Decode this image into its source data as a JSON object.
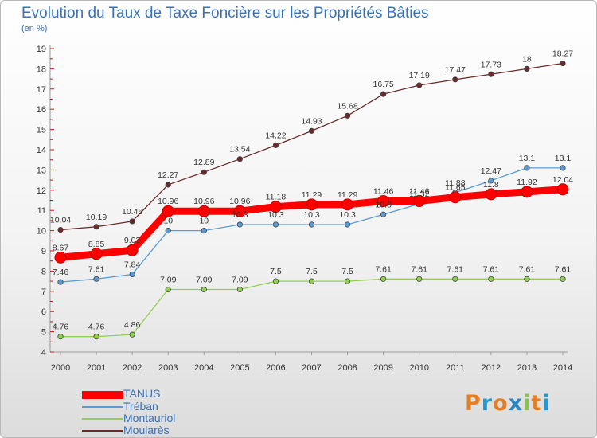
{
  "title": "Evolution du Taux de Taxe Foncière sur les Propriétés Bâties",
  "unit": "(en %)",
  "logo": "Proxiti",
  "chart_data": {
    "type": "line",
    "title": "Evolution du Taux de Taxe Foncière sur les Propriétés Bâties",
    "ylabel": "(en %)",
    "xlabel": "",
    "ylim": [
      4,
      19
    ],
    "y_ticks": [
      4,
      5,
      6,
      7,
      8,
      9,
      10,
      11,
      12,
      13,
      14,
      15,
      16,
      17,
      18,
      19
    ],
    "grid": false,
    "legend_position": "bottom-left",
    "x": [
      "2000",
      "2001",
      "2002",
      "2003",
      "2004",
      "2005",
      "2006",
      "2007",
      "2008",
      "2009",
      "2010",
      "2011",
      "2012",
      "2013",
      "2014"
    ],
    "series": [
      {
        "name": "TANUS",
        "color": "#ff0000",
        "values": [
          8.67,
          8.85,
          9.03,
          10.96,
          10.96,
          10.96,
          11.18,
          11.29,
          11.29,
          11.46,
          11.46,
          11.65,
          11.8,
          11.92,
          12.04
        ]
      },
      {
        "name": "Tréban",
        "color": "#5b9bd5",
        "values": [
          7.46,
          7.61,
          7.84,
          10,
          10,
          10.3,
          10.3,
          10.3,
          10.3,
          10.8,
          11.32,
          11.88,
          12.47,
          13.1,
          13.1
        ]
      },
      {
        "name": "Montauriol",
        "color": "#92d050",
        "values": [
          4.76,
          4.76,
          4.86,
          7.09,
          7.09,
          7.09,
          7.5,
          7.5,
          7.5,
          7.61,
          7.61,
          7.61,
          7.61,
          7.61,
          7.61
        ]
      },
      {
        "name": "Moularès",
        "color": "#6b2a2a",
        "values": [
          10.04,
          10.19,
          10.46,
          12.27,
          12.89,
          13.54,
          14.22,
          14.93,
          15.68,
          16.75,
          17.19,
          17.47,
          17.73,
          18,
          18.27
        ]
      }
    ]
  }
}
